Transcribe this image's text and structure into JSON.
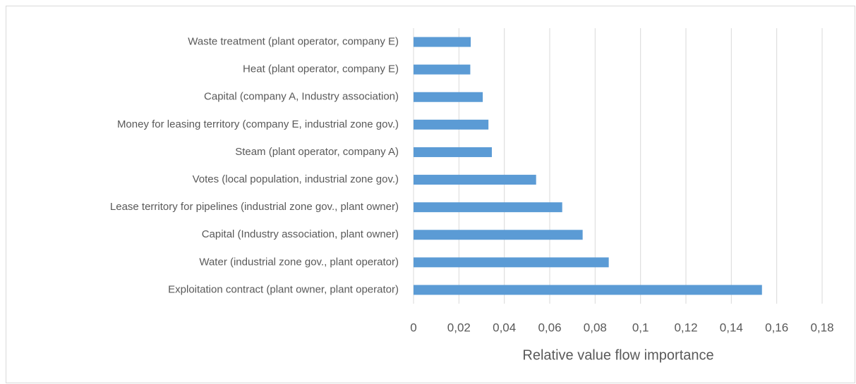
{
  "chart_data": {
    "type": "barh",
    "x_label": "Relative value flow importance",
    "categories": [
      "Waste treatment (plant operator, company E)",
      "Heat (plant operator, company E)",
      "Capital (company A, Industry association)",
      "Money for leasing territory (company E, industrial zone gov.)",
      "Steam (plant operator, company A)",
      "Votes (local population, industrial zone gov.)",
      "Lease territory for pipelines (industrial zone gov., plant owner)",
      "Capital (Industry association, plant owner)",
      "Water (industrial zone gov., plant operator)",
      "Exploitation contract (plant owner, plant operator)"
    ],
    "values": [
      0.0252,
      0.025,
      0.0305,
      0.033,
      0.0345,
      0.054,
      0.0655,
      0.0745,
      0.086,
      0.1535
    ],
    "color": "#5b9bd5",
    "xlim": [
      0,
      0.18
    ],
    "xticks": [
      0,
      {
        "value": 0.02,
        "label": "0,02"
      },
      {
        "value": 0.04,
        "label": "0,04"
      },
      {
        "value": 0.06,
        "label": "0,06"
      },
      {
        "value": 0.08,
        "label": "0,08"
      },
      {
        "value": 0.1,
        "label": "0,1"
      },
      {
        "value": 0.12,
        "label": "0,12"
      },
      {
        "value": 0.14,
        "label": "0,14"
      },
      {
        "value": 0.16,
        "label": "0,16"
      },
      {
        "value": 0.18,
        "label": "0,18"
      }
    ],
    "grid": true
  }
}
